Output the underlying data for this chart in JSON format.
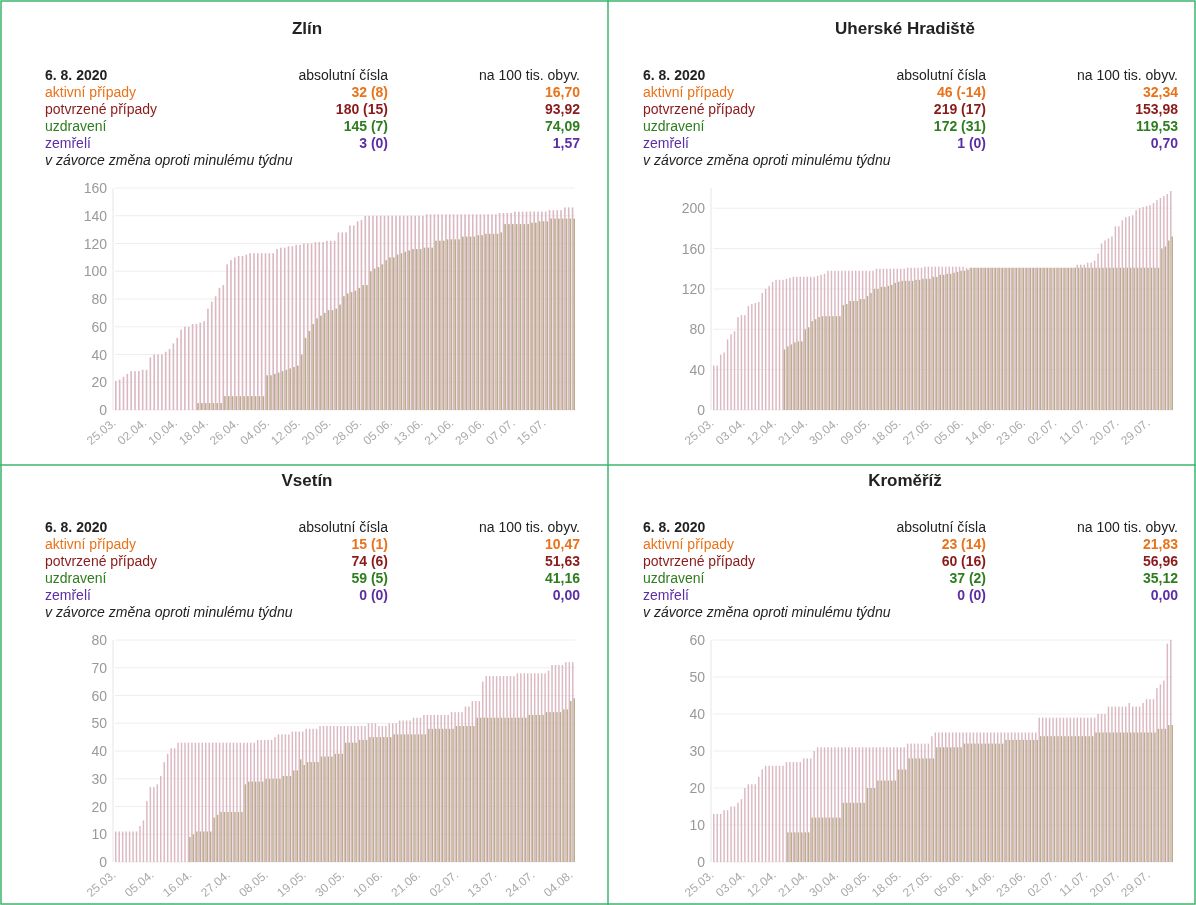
{
  "chart_data": [
    {
      "type": "bar",
      "title": "Zlín",
      "grid": "y",
      "ylim": [
        0,
        160
      ],
      "yticks": [
        0,
        20,
        40,
        60,
        80,
        100,
        120,
        140,
        160
      ],
      "annotations": [
        "6. 8. 2020",
        "absolutní čísla",
        "na 100 tis. obyv.",
        "aktivní případy",
        "32 (8)",
        "16,70",
        "potvrzené případy",
        "180 (15)",
        "93,92",
        "uzdravení",
        "145 (7)",
        "74,09",
        "zemřelí",
        "3 (0)",
        "1,57",
        "v závorce změna oproti minulému týdnu"
      ],
      "categories": [
        "25.03.",
        null,
        null,
        null,
        null,
        null,
        null,
        null,
        "02.04.",
        null,
        null,
        null,
        null,
        null,
        null,
        null,
        "10.04.",
        null,
        null,
        null,
        null,
        null,
        null,
        null,
        "18.04.",
        null,
        null,
        null,
        null,
        null,
        null,
        null,
        "26.04.",
        null,
        null,
        null,
        null,
        null,
        null,
        null,
        "04.05.",
        null,
        null,
        null,
        null,
        null,
        null,
        null,
        "12.05.",
        null,
        null,
        null,
        null,
        null,
        null,
        null,
        "20.05.",
        null,
        null,
        null,
        null,
        null,
        null,
        null,
        "28.05.",
        null,
        null,
        null,
        null,
        null,
        null,
        null,
        "05.06.",
        null,
        null,
        null,
        null,
        null,
        null,
        null,
        "13.06.",
        null,
        null,
        null,
        null,
        null,
        null,
        null,
        "21.06.",
        null,
        null,
        null,
        null,
        null,
        null,
        null,
        "29.06.",
        null,
        null,
        null,
        null,
        null,
        null,
        null,
        "07.07.",
        null,
        null,
        null,
        null,
        null,
        null,
        null,
        "15.07.",
        null,
        null,
        null,
        null,
        null,
        null,
        null
      ],
      "series": [
        {
          "color": "#dbb9c2",
          "values": [
            21,
            22,
            24,
            26,
            28,
            28,
            28,
            29,
            29,
            38,
            40,
            40,
            40,
            42,
            44,
            48,
            52,
            58,
            60,
            60,
            62,
            62,
            63,
            64,
            73,
            78,
            82,
            88,
            90,
            105,
            108,
            110,
            111,
            111,
            112,
            113,
            113,
            113,
            113,
            113,
            113,
            113,
            116,
            117,
            117,
            118,
            118,
            119,
            119,
            120,
            120,
            120,
            121,
            121,
            121,
            122,
            122,
            122,
            128,
            128,
            128,
            133,
            133,
            136,
            137,
            140,
            140,
            140,
            140,
            140,
            140,
            140,
            140,
            140,
            140,
            140,
            140,
            140,
            140,
            140,
            140,
            141,
            141,
            141,
            141,
            141,
            141,
            141,
            141,
            141,
            141,
            141,
            141,
            141,
            141,
            141,
            141,
            141,
            141,
            141,
            142,
            142,
            142,
            142,
            143,
            143,
            143,
            143,
            143,
            143,
            143,
            143,
            143,
            144,
            144,
            144,
            144,
            146,
            146,
            146
          ]
        },
        {
          "color": "#b9ad8b",
          "values": [
            null,
            null,
            null,
            null,
            null,
            null,
            null,
            null,
            null,
            null,
            null,
            null,
            null,
            null,
            null,
            null,
            null,
            null,
            null,
            null,
            null,
            5,
            5,
            5,
            5,
            5,
            5,
            5,
            10,
            10,
            10,
            10,
            10,
            10,
            10,
            10,
            10,
            10,
            10,
            25,
            25,
            26,
            27,
            28,
            29,
            30,
            31,
            32,
            40,
            52,
            57,
            62,
            66,
            68,
            70,
            72,
            72,
            73,
            76,
            82,
            84,
            85,
            86,
            88,
            90,
            90,
            100,
            102,
            103,
            105,
            108,
            110,
            110,
            112,
            113,
            114,
            115,
            116,
            116,
            116,
            117,
            117,
            117,
            122,
            122,
            122,
            123,
            123,
            123,
            123,
            125,
            125,
            125,
            125,
            126,
            126,
            127,
            127,
            127,
            127,
            128,
            134,
            134,
            134,
            134,
            134,
            134,
            134,
            135,
            135,
            136,
            136,
            136,
            138,
            138,
            138,
            138,
            138,
            138,
            138
          ]
        }
      ]
    },
    {
      "type": "bar",
      "title": "Uherské Hradiště",
      "grid": "y",
      "ylim": [
        0,
        220
      ],
      "yticks": [
        0,
        40,
        80,
        120,
        160,
        200
      ],
      "annotations": [
        "6. 8. 2020",
        "absolutní čísla",
        "na 100 tis. obyv.",
        "aktivní případy",
        "46 (-14)",
        "32,34",
        "potvrzené případy",
        "219 (17)",
        "153,98",
        "uzdravení",
        "172 (31)",
        "119,53",
        "zemřelí",
        "1 (0)",
        "0,70",
        "v závorce změna oproti minulému týdnu"
      ],
      "categories": [
        "25.03.",
        null,
        null,
        null,
        null,
        null,
        null,
        null,
        null,
        "03.04.",
        null,
        null,
        null,
        null,
        null,
        null,
        null,
        null,
        "12.04.",
        null,
        null,
        null,
        null,
        null,
        null,
        null,
        null,
        "21.04.",
        null,
        null,
        null,
        null,
        null,
        null,
        null,
        null,
        "30.04.",
        null,
        null,
        null,
        null,
        null,
        null,
        null,
        null,
        "09.05.",
        null,
        null,
        null,
        null,
        null,
        null,
        null,
        null,
        "18.05.",
        null,
        null,
        null,
        null,
        null,
        null,
        null,
        null,
        "27.05.",
        null,
        null,
        null,
        null,
        null,
        null,
        null,
        null,
        "05.06.",
        null,
        null,
        null,
        null,
        null,
        null,
        null,
        null,
        "14.06.",
        null,
        null,
        null,
        null,
        null,
        null,
        null,
        null,
        "23.06.",
        null,
        null,
        null,
        null,
        null,
        null,
        null,
        null,
        "02.07.",
        null,
        null,
        null,
        null,
        null,
        null,
        null,
        null,
        "11.07.",
        null,
        null,
        null,
        null,
        null,
        null,
        null,
        null,
        "20.07.",
        null,
        null,
        null,
        null,
        null,
        null,
        null,
        null,
        "29.07.",
        null,
        null,
        null,
        null,
        null,
        null
      ],
      "series": [
        {
          "color": "#dbb9c2",
          "values": [
            44,
            44,
            55,
            57,
            70,
            75,
            78,
            92,
            94,
            94,
            103,
            105,
            106,
            107,
            116,
            120,
            123,
            127,
            129,
            129,
            129,
            130,
            131,
            132,
            132,
            132,
            132,
            132,
            132,
            132,
            133,
            134,
            135,
            138,
            138,
            138,
            138,
            138,
            138,
            138,
            138,
            138,
            138,
            138,
            138,
            138,
            138,
            140,
            140,
            140,
            140,
            140,
            140,
            140,
            140,
            140,
            141,
            141,
            141,
            141,
            141,
            142,
            142,
            142,
            142,
            142,
            142,
            142,
            142,
            142,
            142,
            142,
            142,
            141,
            141,
            141,
            141,
            141,
            141,
            141,
            141,
            141,
            141,
            141,
            141,
            141,
            141,
            141,
            141,
            141,
            141,
            141,
            141,
            141,
            141,
            141,
            141,
            141,
            141,
            141,
            141,
            141,
            141,
            141,
            141,
            144,
            144,
            144,
            146,
            146,
            148,
            155,
            165,
            168,
            170,
            172,
            182,
            182,
            188,
            191,
            192,
            193,
            198,
            200,
            201,
            202,
            203,
            205,
            208,
            210,
            212,
            214,
            217
          ]
        },
        {
          "color": "#b9ad8b",
          "values": [
            null,
            null,
            null,
            null,
            null,
            null,
            null,
            null,
            null,
            null,
            null,
            null,
            null,
            null,
            null,
            null,
            null,
            null,
            null,
            null,
            60,
            63,
            65,
            67,
            68,
            68,
            80,
            82,
            88,
            90,
            92,
            93,
            93,
            93,
            93,
            93,
            93,
            104,
            105,
            108,
            108,
            108,
            110,
            110,
            113,
            116,
            120,
            120,
            122,
            122,
            123,
            124,
            126,
            127,
            128,
            128,
            128,
            128,
            129,
            129,
            130,
            130,
            130,
            132,
            132,
            134,
            134,
            135,
            135,
            136,
            137,
            138,
            138,
            139,
            141,
            141,
            141,
            141,
            141,
            141,
            141,
            141,
            141,
            141,
            141,
            141,
            141,
            141,
            141,
            141,
            141,
            141,
            141,
            141,
            141,
            141,
            141,
            141,
            141,
            141,
            141,
            141,
            141,
            141,
            141,
            141,
            141,
            141,
            141,
            141,
            141,
            141,
            141,
            141,
            141,
            141,
            141,
            141,
            141,
            141,
            141,
            141,
            141,
            141,
            141,
            141,
            141,
            141,
            141,
            160,
            162,
            168,
            172
          ]
        }
      ]
    },
    {
      "type": "bar",
      "title": "Vsetín",
      "grid": "y",
      "ylim": [
        0,
        80
      ],
      "yticks": [
        0,
        10,
        20,
        30,
        40,
        50,
        60,
        70,
        80
      ],
      "annotations": [
        "6. 8. 2020",
        "absolutní čísla",
        "na 100 tis. obyv.",
        "aktivní případy",
        "15 (1)",
        "10,47",
        "potvrzené případy",
        "74 (6)",
        "51,63",
        "uzdravení",
        "59 (5)",
        "41,16",
        "zemřelí",
        "0 (0)",
        "0,00",
        "v závorce změna oproti minulému týdnu"
      ],
      "categories": [
        "25.03.",
        null,
        null,
        null,
        null,
        null,
        null,
        null,
        null,
        null,
        null,
        "05.04.",
        null,
        null,
        null,
        null,
        null,
        null,
        null,
        null,
        null,
        null,
        "16.04.",
        null,
        null,
        null,
        null,
        null,
        null,
        null,
        null,
        null,
        null,
        "27.04.",
        null,
        null,
        null,
        null,
        null,
        null,
        null,
        null,
        null,
        null,
        "08.05.",
        null,
        null,
        null,
        null,
        null,
        null,
        null,
        null,
        null,
        null,
        "19.05.",
        null,
        null,
        null,
        null,
        null,
        null,
        null,
        null,
        null,
        null,
        "30.05.",
        null,
        null,
        null,
        null,
        null,
        null,
        null,
        null,
        null,
        null,
        "10.06.",
        null,
        null,
        null,
        null,
        null,
        null,
        null,
        null,
        null,
        null,
        "21.06.",
        null,
        null,
        null,
        null,
        null,
        null,
        null,
        null,
        null,
        null,
        "02.07.",
        null,
        null,
        null,
        null,
        null,
        null,
        null,
        null,
        null,
        null,
        "13.07.",
        null,
        null,
        null,
        null,
        null,
        null,
        null,
        null,
        null,
        null,
        "24.07.",
        null,
        null,
        null,
        null,
        null,
        null,
        null,
        null,
        null,
        null,
        "04.08."
      ],
      "series": [
        {
          "color": "#dbb9c2",
          "values": [
            11,
            11,
            11,
            11,
            11,
            11,
            11,
            13,
            15,
            22,
            27,
            27,
            28,
            31,
            36,
            39,
            41,
            41,
            43,
            43,
            43,
            43,
            43,
            43,
            43,
            43,
            43,
            43,
            43,
            43,
            43,
            43,
            43,
            43,
            43,
            43,
            43,
            43,
            43,
            43,
            43,
            44,
            44,
            44,
            44,
            44,
            45,
            46,
            46,
            46,
            46,
            47,
            47,
            47,
            47,
            48,
            48,
            48,
            48,
            49,
            49,
            49,
            49,
            49,
            49,
            49,
            49,
            49,
            49,
            49,
            49,
            49,
            49,
            50,
            50,
            50,
            49,
            49,
            49,
            50,
            50,
            50,
            51,
            51,
            51,
            51,
            52,
            52,
            52,
            53,
            53,
            53,
            53,
            53,
            53,
            53,
            53,
            54,
            54,
            54,
            54,
            56,
            56,
            58,
            58,
            58,
            65,
            67,
            67,
            67,
            67,
            67,
            67,
            67,
            67,
            67,
            68,
            68,
            68,
            68,
            68,
            68,
            68,
            68,
            68,
            69,
            71,
            71,
            71,
            71,
            72,
            72,
            72
          ]
        },
        {
          "color": "#b9ad8b",
          "values": [
            null,
            null,
            null,
            null,
            null,
            null,
            null,
            null,
            null,
            null,
            null,
            null,
            null,
            null,
            null,
            null,
            null,
            null,
            null,
            null,
            null,
            9,
            10,
            11,
            11,
            11,
            11,
            11,
            16,
            17,
            18,
            18,
            18,
            18,
            18,
            18,
            18,
            28,
            29,
            29,
            29,
            29,
            29,
            30,
            30,
            30,
            30,
            30,
            31,
            31,
            31,
            33,
            33,
            37,
            35,
            36,
            36,
            36,
            36,
            38,
            38,
            38,
            38,
            39,
            39,
            39,
            43,
            43,
            43,
            43,
            44,
            44,
            44,
            45,
            45,
            45,
            45,
            45,
            45,
            45,
            46,
            46,
            46,
            46,
            46,
            46,
            46,
            46,
            46,
            46,
            48,
            48,
            48,
            48,
            48,
            48,
            48,
            48,
            49,
            49,
            49,
            49,
            49,
            49,
            52,
            52,
            52,
            52,
            52,
            52,
            52,
            52,
            52,
            52,
            52,
            52,
            52,
            52,
            52,
            53,
            53,
            53,
            53,
            53,
            54,
            54,
            54,
            54,
            54,
            55,
            55,
            58,
            59
          ]
        }
      ]
    },
    {
      "type": "bar",
      "title": "Kroměříž",
      "grid": "y",
      "ylim": [
        0,
        60
      ],
      "yticks": [
        0,
        10,
        20,
        30,
        40,
        50,
        60
      ],
      "annotations": [
        "6. 8. 2020",
        "absolutní čísla",
        "na 100 tis. obyv.",
        "aktivní případy",
        "23 (14)",
        "21,83",
        "potvrzené případy",
        "60 (16)",
        "56,96",
        "uzdravení",
        "37 (2)",
        "35,12",
        "zemřelí",
        "0 (0)",
        "0,00",
        "v závorce změna oproti minulému týdnu"
      ],
      "categories": [
        "25.03.",
        null,
        null,
        null,
        null,
        null,
        null,
        null,
        null,
        "03.04.",
        null,
        null,
        null,
        null,
        null,
        null,
        null,
        null,
        "12.04.",
        null,
        null,
        null,
        null,
        null,
        null,
        null,
        null,
        "21.04.",
        null,
        null,
        null,
        null,
        null,
        null,
        null,
        null,
        "30.04.",
        null,
        null,
        null,
        null,
        null,
        null,
        null,
        null,
        "09.05.",
        null,
        null,
        null,
        null,
        null,
        null,
        null,
        null,
        "18.05.",
        null,
        null,
        null,
        null,
        null,
        null,
        null,
        null,
        "27.05.",
        null,
        null,
        null,
        null,
        null,
        null,
        null,
        null,
        "05.06.",
        null,
        null,
        null,
        null,
        null,
        null,
        null,
        null,
        "14.06.",
        null,
        null,
        null,
        null,
        null,
        null,
        null,
        null,
        "23.06.",
        null,
        null,
        null,
        null,
        null,
        null,
        null,
        null,
        "02.07.",
        null,
        null,
        null,
        null,
        null,
        null,
        null,
        null,
        "11.07.",
        null,
        null,
        null,
        null,
        null,
        null,
        null,
        null,
        "20.07.",
        null,
        null,
        null,
        null,
        null,
        null,
        null,
        null,
        "29.07.",
        null,
        null,
        null,
        null,
        null,
        null
      ],
      "series": [
        {
          "color": "#dbb9c2",
          "values": [
            13,
            13,
            13,
            14,
            14,
            15,
            15,
            16,
            17,
            20,
            21,
            21,
            21,
            23,
            25,
            26,
            26,
            26,
            26,
            26,
            26,
            27,
            27,
            27,
            27,
            27,
            28,
            28,
            28,
            30,
            31,
            31,
            31,
            31,
            31,
            31,
            31,
            31,
            31,
            31,
            31,
            31,
            31,
            31,
            31,
            31,
            31,
            31,
            31,
            31,
            31,
            31,
            31,
            31,
            31,
            31,
            32,
            32,
            32,
            32,
            32,
            32,
            32,
            34,
            35,
            35,
            35,
            35,
            35,
            35,
            35,
            35,
            35,
            35,
            35,
            35,
            35,
            35,
            35,
            35,
            35,
            35,
            35,
            35,
            35,
            35,
            35,
            35,
            35,
            35,
            35,
            35,
            35,
            35,
            39,
            39,
            39,
            39,
            39,
            39,
            39,
            39,
            39,
            39,
            39,
            39,
            39,
            39,
            39,
            39,
            39,
            40,
            40,
            40,
            42,
            42,
            42,
            42,
            42,
            42,
            43,
            42,
            42,
            42,
            43,
            44,
            44,
            44,
            47,
            48,
            49,
            59,
            60
          ]
        },
        {
          "color": "#b9ad8b",
          "values": [
            null,
            null,
            null,
            null,
            null,
            null,
            null,
            null,
            null,
            null,
            null,
            null,
            null,
            null,
            null,
            null,
            null,
            null,
            null,
            null,
            null,
            8,
            8,
            8,
            8,
            8,
            8,
            8,
            12,
            12,
            12,
            12,
            12,
            12,
            12,
            12,
            12,
            16,
            16,
            16,
            16,
            16,
            16,
            16,
            20,
            20,
            20,
            22,
            22,
            22,
            22,
            22,
            22,
            25,
            25,
            25,
            28,
            28,
            28,
            28,
            28,
            28,
            28,
            28,
            31,
            31,
            31,
            31,
            31,
            31,
            31,
            31,
            32,
            32,
            32,
            32,
            32,
            32,
            32,
            32,
            32,
            32,
            32,
            32,
            33,
            33,
            33,
            33,
            33,
            33,
            33,
            33,
            33,
            33,
            34,
            34,
            34,
            34,
            34,
            34,
            34,
            34,
            34,
            34,
            34,
            34,
            34,
            34,
            34,
            34,
            35,
            35,
            35,
            35,
            35,
            35,
            35,
            35,
            35,
            35,
            35,
            35,
            35,
            35,
            35,
            35,
            35,
            35,
            36,
            36,
            36,
            37,
            37
          ]
        }
      ]
    }
  ]
}
